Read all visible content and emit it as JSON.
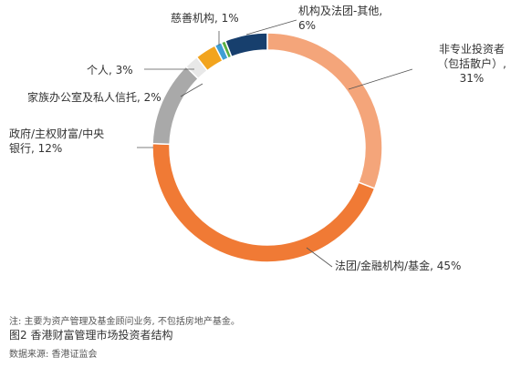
{
  "chart_data": {
    "type": "pie",
    "variant": "donut",
    "title": "",
    "slices": [
      {
        "label_lines": [
          "非专业投资者",
          "（包括散户）,",
          "31%"
        ],
        "value": 31,
        "color": "#F4A57A"
      },
      {
        "label_lines": [
          "法团/金融机构/基金, 45%"
        ],
        "value": 45,
        "color": "#F07A35"
      },
      {
        "label_lines": [
          "政府/主权财富/中央",
          "银行, 12%"
        ],
        "value": 12,
        "color": "#A9A9A9"
      },
      {
        "label_lines": [
          "家族办公室及私人信托, 2%"
        ],
        "value": 2,
        "color": "#E8E8E8"
      },
      {
        "label_lines": [
          "个人, 3%"
        ],
        "value": 3,
        "color": "#F2A41E"
      },
      {
        "label_lines": [
          "慈善机构, 1%"
        ],
        "value": 1,
        "color": "#3E9FD6"
      },
      {
        "label_lines": [
          "机构及法团-其他,",
          "6%"
        ],
        "value": 6,
        "color": "#173F6D"
      }
    ],
    "legend": "none",
    "extra_slices": [
      {
        "value": 0.6,
        "color": "#5AB043"
      }
    ]
  },
  "footer": {
    "note": "注: 主要为资产管理及基金顾问业务, 不包括房地产基金。",
    "figure_title": "图2  香港财富管理市场投资者结构",
    "source": "数据来源: 香港证监会"
  }
}
